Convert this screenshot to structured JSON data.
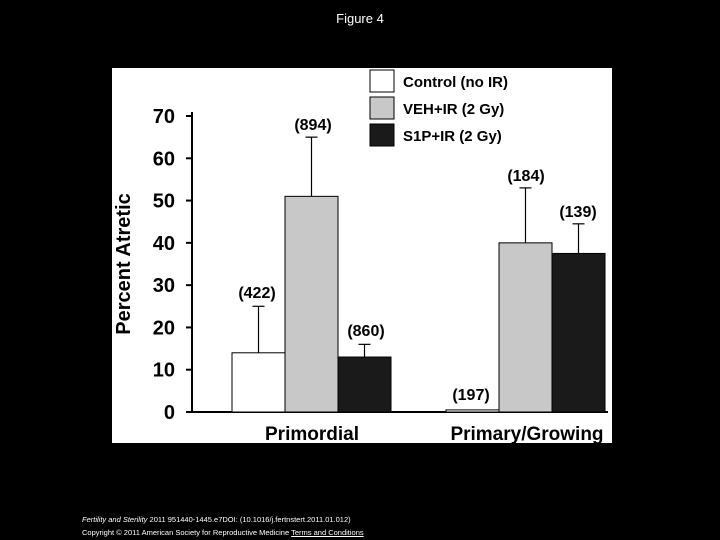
{
  "slide": {
    "title": "Figure 4"
  },
  "footer": {
    "journal": "Fertility and Sterility",
    "citation": " 2011 951440-1445.e7DOI: (10.1016/j.fertnstert.2011.01.012)",
    "copyright": "Copyright © 2011 American Society for Reproductive Medicine",
    "terms_link": "Terms and Conditions"
  },
  "colors": {
    "control": "#ffffff",
    "veh": "#c8c8c8",
    "s1p": "#1a1a1a",
    "axis": "#000000",
    "panel_bg": "#ffffff",
    "page_bg": "#000000"
  },
  "chart_data": {
    "type": "bar",
    "title": "",
    "xlabel": "",
    "ylabel": "Percent Atretic",
    "ylim": [
      0,
      70
    ],
    "yticks": [
      0,
      10,
      20,
      30,
      40,
      50,
      60,
      70
    ],
    "categories": [
      "Primordial",
      "Primary/Growing"
    ],
    "legend_position": "top-right",
    "series": [
      {
        "name": "Control (no IR)",
        "values": [
          14,
          0.5
        ],
        "errors": [
          11,
          0
        ],
        "n_labels": [
          "(422)",
          "(197)"
        ]
      },
      {
        "name": "VEH+IR (2 Gy)",
        "values": [
          51,
          40
        ],
        "errors": [
          14,
          13
        ],
        "n_labels": [
          "(894)",
          "(184)"
        ]
      },
      {
        "name": "S1P+IR (2 Gy)",
        "values": [
          13,
          37.5
        ],
        "errors": [
          3,
          7
        ],
        "n_labels": [
          "(860)",
          "(139)"
        ]
      }
    ]
  }
}
